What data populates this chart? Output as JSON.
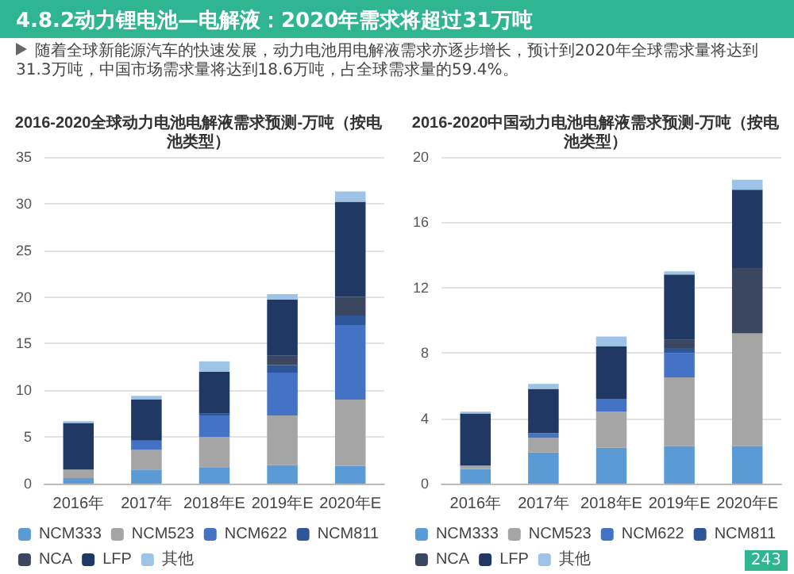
{
  "chart_data": [
    {
      "type": "bar",
      "title": "2016-2020全球动力电池电解液需求预测-万吨（按电池类型）",
      "annotations": [
        "4.8.2动力锂电池—电解液：2020年需求将超过31万吨",
        "随着全球新能源汽车的快速发展，动力电池用电解液需求亦逐步增长，预计到2020年全球需求量将达到31.3万吨，中国市场需求量将达到18.6万吨，占全球需求量的59.4%。"
      ],
      "categories": [
        "2016年",
        "2017年",
        "2018年E",
        "2019年E",
        "2020年E"
      ],
      "stacked": true,
      "grid": "y",
      "legend": "bottom",
      "ylim": [
        0,
        35
      ],
      "yticks": [
        0,
        5,
        10,
        15,
        20,
        25,
        30,
        35
      ],
      "series": [
        {
          "name": "NCM333",
          "color": "#5b9bd5",
          "values": [
            0.6,
            1.5,
            1.7,
            2.0,
            1.9
          ]
        },
        {
          "name": "NCM523",
          "color": "#a5a5a5",
          "values": [
            0.9,
            2.1,
            3.3,
            5.3,
            7.1
          ]
        },
        {
          "name": "NCM622",
          "color": "#4472c4",
          "values": [
            0,
            1.0,
            2.3,
            4.6,
            8.0
          ]
        },
        {
          "name": "NCM811",
          "color": "#2e5597",
          "values": [
            0,
            0,
            0.2,
            0.8,
            1.0
          ]
        },
        {
          "name": "NCA",
          "color": "#3b4660",
          "values": [
            0,
            0,
            0,
            1.0,
            2.0
          ]
        },
        {
          "name": "LFP",
          "color": "#1f3864",
          "values": [
            5.0,
            4.4,
            4.5,
            6.0,
            10.2
          ]
        },
        {
          "name": "其他",
          "color": "#9dc3e6",
          "values": [
            0.2,
            0.4,
            1.1,
            0.6,
            1.1
          ]
        }
      ]
    },
    {
      "type": "bar",
      "title": "2016-2020中国动力电池电解液需求预测-万吨（按电池类型）",
      "annotations": [
        "243"
      ],
      "categories": [
        "2016年",
        "2017年",
        "2018年E",
        "2019年E",
        "2020年E"
      ],
      "stacked": true,
      "grid": "y",
      "legend": "bottom",
      "ylim": [
        0,
        20
      ],
      "yticks": [
        0,
        4,
        8,
        12,
        16,
        20
      ],
      "series": [
        {
          "name": "NCM333",
          "color": "#5b9bd5",
          "values": [
            0.9,
            1.9,
            2.2,
            2.3,
            2.3
          ]
        },
        {
          "name": "NCM523",
          "color": "#a5a5a5",
          "values": [
            0.2,
            0.9,
            2.2,
            4.2,
            6.9
          ]
        },
        {
          "name": "NCM622",
          "color": "#4472c4",
          "values": [
            0,
            0.3,
            0.8,
            1.5,
            0
          ]
        },
        {
          "name": "NCM811",
          "color": "#2e5597",
          "values": [
            0,
            0,
            0,
            0.3,
            0
          ]
        },
        {
          "name": "NCA",
          "color": "#3b4660",
          "values": [
            0,
            0,
            0,
            0.5,
            4.0
          ]
        },
        {
          "name": "LFP",
          "color": "#1f3864",
          "values": [
            3.2,
            2.7,
            3.2,
            4.0,
            4.8
          ]
        },
        {
          "name": "其他",
          "color": "#9dc3e6",
          "values": [
            0.1,
            0.3,
            0.6,
            0.2,
            0.6
          ]
        }
      ]
    }
  ]
}
